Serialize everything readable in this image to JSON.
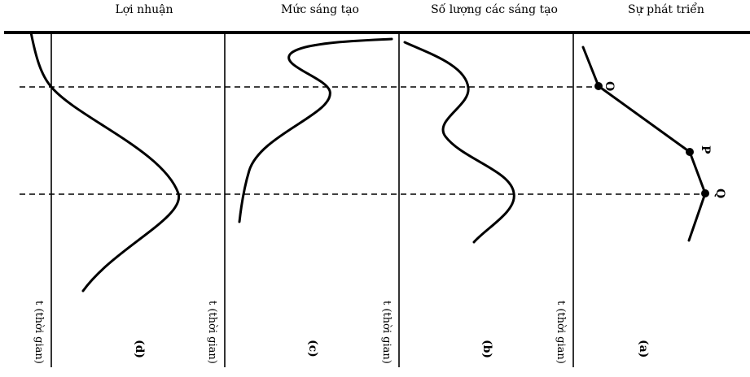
{
  "headers": {
    "profit": "Lợi nhuận",
    "creativity_level": "Mức sáng tạo",
    "creativity_count": "Số lượng các sáng tạo",
    "development": "Sự phát triển"
  },
  "axis_label": "t (thời gian)",
  "panel_labels": {
    "d": "(d)",
    "c": "(c)",
    "b": "(b)",
    "a": "(a)"
  },
  "points": {
    "o": "O",
    "p": "P",
    "q": "Q"
  }
}
